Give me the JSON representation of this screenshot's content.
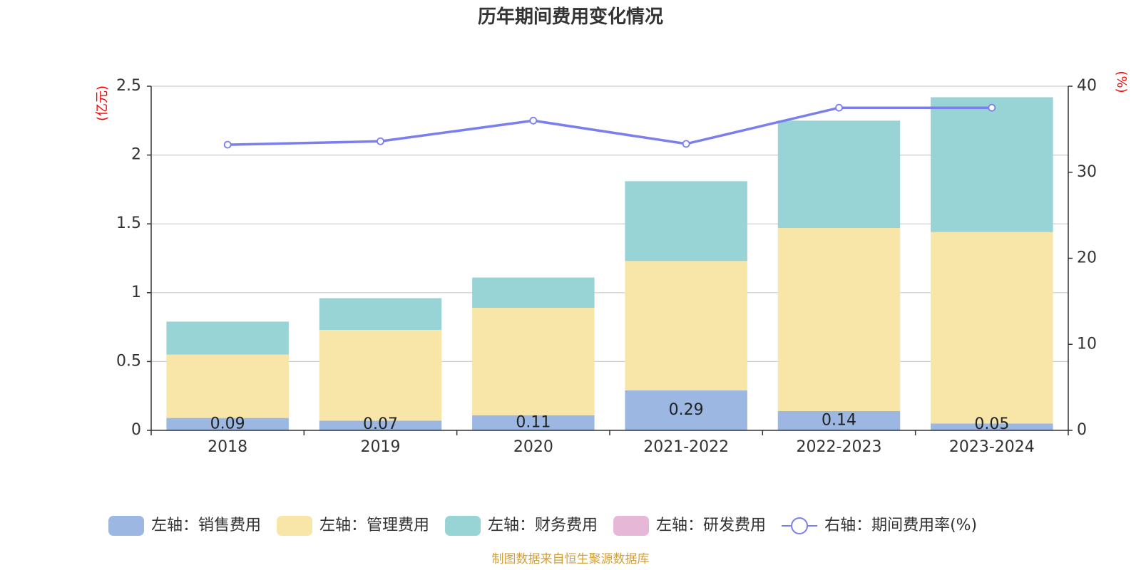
{
  "chart_data": {
    "type": "bar",
    "title": "历年期间费用变化情况",
    "categories": [
      "2018",
      "2019",
      "2020",
      "2021-2022",
      "2022-2023",
      "2023-2024"
    ],
    "left_axis": {
      "unit": "(亿元)",
      "ylim": [
        0,
        2.5
      ],
      "ticks": [
        "0",
        "0.5",
        "1",
        "1.5",
        "2",
        "2.5"
      ],
      "tick_values": [
        0,
        0.5,
        1,
        1.5,
        2,
        2.5
      ]
    },
    "right_axis": {
      "unit": "(%)",
      "ylim": [
        0,
        40
      ],
      "ticks": [
        "0",
        "10",
        "20",
        "30",
        "40"
      ],
      "tick_values": [
        0,
        10,
        20,
        30,
        40
      ]
    },
    "grid": true,
    "legend_position": "bottom",
    "series": [
      {
        "name": "左轴：销售费用",
        "axis": "left",
        "kind": "bar",
        "color": "#9bb7e2",
        "values": [
          0.09,
          0.07,
          0.11,
          0.29,
          0.14,
          0.05
        ],
        "labels": [
          "0.09",
          "0.07",
          "0.11",
          "0.29",
          "0.14",
          "0.05"
        ]
      },
      {
        "name": "左轴：管理费用",
        "axis": "left",
        "kind": "bar",
        "color": "#f7e6a8",
        "values": [
          0.46,
          0.66,
          0.78,
          0.94,
          1.33,
          1.39
        ]
      },
      {
        "name": "左轴：财务费用",
        "axis": "left",
        "kind": "bar",
        "color": "#98d4d5",
        "values": [
          0.24,
          0.23,
          0.22,
          0.58,
          0.78,
          0.98
        ]
      },
      {
        "name": "左轴：研发费用",
        "axis": "left",
        "kind": "bar",
        "color": "#e7b7d8",
        "values": [
          0,
          0,
          0,
          0,
          0,
          0
        ]
      },
      {
        "name": "右轴：期间费用率(%)",
        "axis": "right",
        "kind": "line",
        "color": "#7b7fee",
        "values": [
          33.2,
          33.6,
          36.0,
          33.3,
          37.5,
          37.5
        ]
      }
    ]
  },
  "footer": {
    "source": "制图数据来自恒生聚源数据库",
    "color": "#d4a03a"
  }
}
